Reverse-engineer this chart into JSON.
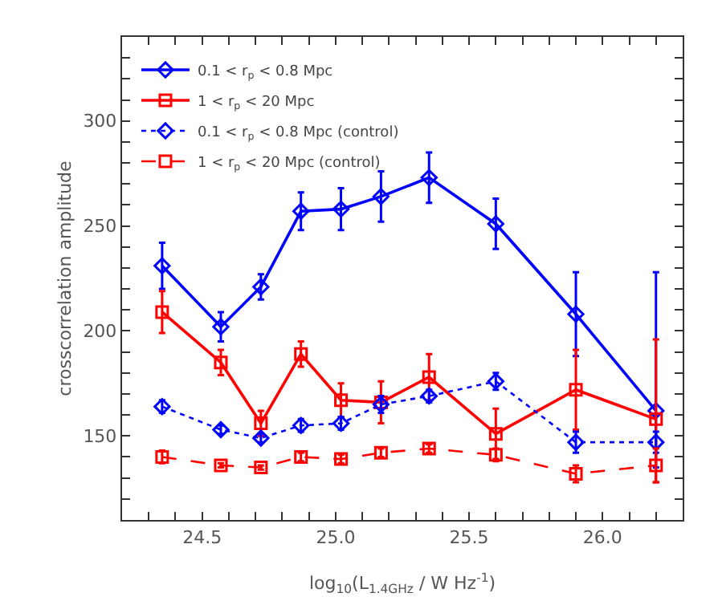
{
  "chart_data": {
    "type": "line",
    "xlabel": "log$_{10}$(L$_{1.4GHz}$ / W Hz$^{-1}$)",
    "ylabel": "crosscorrelation amplitude",
    "x": [
      24.35,
      24.57,
      24.72,
      24.87,
      25.02,
      25.17,
      25.35,
      25.6,
      25.9,
      26.2
    ],
    "series": [
      {
        "name": "0.1 < r$_{p}$ < 0.8 Mpc",
        "color": "#0000ff",
        "marker": "diamond",
        "line_style": "solid",
        "values": [
          231,
          202,
          221,
          257,
          258,
          264,
          273,
          251,
          208,
          162
        ],
        "errors": [
          11,
          7,
          6,
          9,
          10,
          12,
          12,
          12,
          20,
          [
            135,
            228
          ]
        ]
      },
      {
        "name": "1 < r$_{p}$ < 20 Mpc",
        "color": "#ff0000",
        "marker": "square",
        "line_style": "solid",
        "values": [
          209,
          185,
          156,
          189,
          167,
          166,
          178,
          151,
          172,
          158
        ],
        "errors": [
          10,
          6,
          6,
          6,
          8,
          10,
          11,
          12,
          19,
          [
            128,
            196
          ]
        ]
      },
      {
        "name": "0.1 < r$_{p}$ < 0.8 Mpc (control)",
        "color": "#0000ff",
        "marker": "diamond",
        "line_style": "dotted",
        "values": [
          164,
          153,
          149,
          155,
          156,
          165,
          169,
          176,
          147,
          147
        ],
        "errors": [
          3,
          2,
          2,
          3,
          3,
          4,
          3,
          4,
          5,
          5
        ]
      },
      {
        "name": "1 < r$_{p}$ < 20 Mpc (control)",
        "color": "#ff0000",
        "marker": "square",
        "line_style": "dashed",
        "values": [
          140,
          136,
          135,
          140,
          139,
          142,
          144,
          141,
          132,
          136
        ],
        "errors": [
          3,
          1,
          1,
          2,
          2,
          2,
          2,
          3,
          4,
          8
        ]
      }
    ],
    "xlim": [
      24.2,
      26.3
    ],
    "xticks": [
      {
        "value": 24.2,
        "label": null
      },
      {
        "value": 24.3,
        "label": null
      },
      {
        "value": 24.4,
        "label": null
      },
      {
        "value": 24.5,
        "label": "24.5"
      },
      {
        "value": 24.6,
        "label": null
      },
      {
        "value": 24.7,
        "label": null
      },
      {
        "value": 24.8,
        "label": null
      },
      {
        "value": 24.9,
        "label": null
      },
      {
        "value": 25.0,
        "label": "25.0"
      },
      {
        "value": 25.1,
        "label": null
      },
      {
        "value": 25.2,
        "label": null
      },
      {
        "value": 25.3,
        "label": null
      },
      {
        "value": 25.4,
        "label": null
      },
      {
        "value": 25.5,
        "label": "25.5"
      },
      {
        "value": 25.6,
        "label": null
      },
      {
        "value": 25.7,
        "label": null
      },
      {
        "value": 25.8,
        "label": null
      },
      {
        "value": 25.9,
        "label": null
      },
      {
        "value": 26.0,
        "label": "26.0"
      },
      {
        "value": 26.1,
        "label": null
      },
      {
        "value": 26.2,
        "label": null
      }
    ],
    "ylim": [
      110,
      340
    ],
    "yticks": [
      {
        "value": 120,
        "label": null
      },
      {
        "value": 130,
        "label": null
      },
      {
        "value": 140,
        "label": null
      },
      150,
      {
        "value": 160,
        "label": null
      },
      {
        "value": 170,
        "label": null
      },
      {
        "value": 180,
        "label": null
      },
      {
        "value": 190,
        "label": null
      },
      200,
      {
        "value": 210,
        "label": null
      },
      {
        "value": 220,
        "label": null
      },
      {
        "value": 230,
        "label": null
      },
      {
        "value": 240,
        "label": null
      },
      250,
      {
        "value": 260,
        "label": null
      },
      {
        "value": 270,
        "label": null
      },
      {
        "value": 280,
        "label": null
      },
      {
        "value": 290,
        "label": null
      },
      300,
      {
        "value": 310,
        "label": null
      },
      {
        "value": 320,
        "label": null
      },
      {
        "value": 330,
        "label": null
      }
    ],
    "grid": false,
    "legend": "top left"
  }
}
